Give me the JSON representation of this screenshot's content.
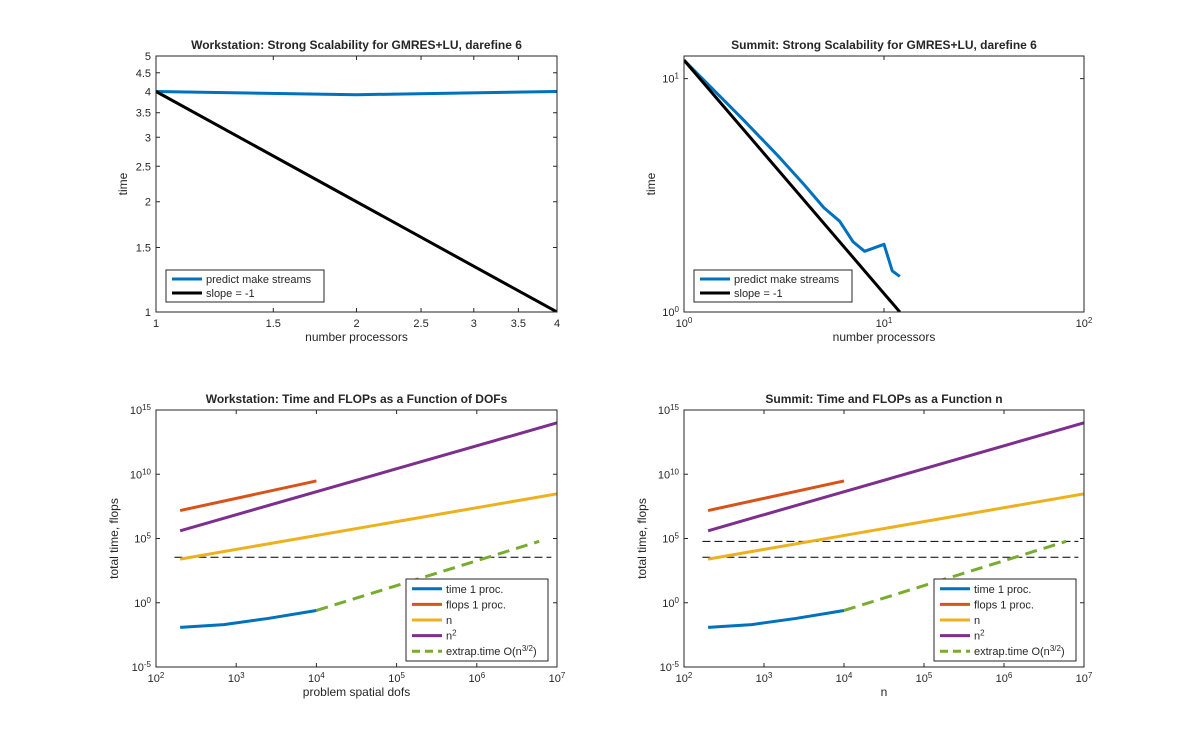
{
  "chart_data": [
    {
      "type": "line",
      "title": "Workstation: Strong Scalability for GMRES+LU, darefine 6",
      "xlabel": "number processors",
      "ylabel": "time",
      "xscale": "log",
      "yscale": "log",
      "xlim": [
        1,
        4
      ],
      "ylim": [
        1,
        5
      ],
      "xticks": [
        1,
        1.5,
        2,
        2.5,
        3,
        3.5,
        4
      ],
      "xtick_labels": [
        "1",
        "1.5",
        "2",
        "2.5",
        "3",
        "3.5",
        "4"
      ],
      "yticks": [
        1,
        1.5,
        2,
        2.5,
        3,
        3.5,
        4,
        4.5,
        5
      ],
      "ytick_labels": [
        "1",
        "1.5",
        "2",
        "2.5",
        "3",
        "3.5",
        "4",
        "4.5",
        "5"
      ],
      "legend_location": "bottom-left",
      "series": [
        {
          "name": "predict make streams",
          "color": "#0072BD",
          "dash": false,
          "x": [
            1,
            2,
            4
          ],
          "y": [
            4.0,
            3.92,
            4.0
          ]
        },
        {
          "name": "slope = -1",
          "color": "#000000",
          "dash": false,
          "x": [
            1,
            4
          ],
          "y": [
            4.0,
            1.0
          ]
        }
      ]
    },
    {
      "type": "line",
      "title": "Summit: Strong Scalability for GMRES+LU, darefine 6",
      "xlabel": "number processors",
      "ylabel": "time",
      "xscale": "log",
      "yscale": "log",
      "xlim": [
        1,
        100
      ],
      "ylim": [
        1,
        12.5
      ],
      "xticks": [
        1,
        10,
        100
      ],
      "xtick_labels": [
        "10^0",
        "10^1",
        "10^2"
      ],
      "yticks": [
        1,
        10
      ],
      "ytick_labels": [
        "10^0",
        "10^1"
      ],
      "legend_location": "bottom-left",
      "series": [
        {
          "name": "predict make streams",
          "color": "#0072BD",
          "dash": false,
          "x": [
            1,
            2,
            3,
            4,
            5,
            6,
            7,
            8,
            10,
            11,
            12
          ],
          "y": [
            12,
            6.6,
            4.6,
            3.5,
            2.8,
            2.45,
            2.0,
            1.82,
            1.95,
            1.5,
            1.42
          ]
        },
        {
          "name": "slope = -1",
          "color": "#000000",
          "dash": false,
          "x": [
            1,
            12
          ],
          "y": [
            12,
            1
          ]
        }
      ]
    },
    {
      "type": "line",
      "title": "Workstation: Time and FLOPs as a Function of DOFs",
      "xlabel": "problem spatial dofs",
      "ylabel": "total time, flops",
      "xscale": "log",
      "yscale": "log",
      "xlim": [
        100,
        10000000
      ],
      "ylim": [
        1e-05,
        1000000000000000.0
      ],
      "xticks": [
        100,
        1000,
        10000,
        100000,
        1000000,
        10000000
      ],
      "xtick_labels": [
        "10^2",
        "10^3",
        "10^4",
        "10^5",
        "10^6",
        "10^7"
      ],
      "yticks": [
        1e-05,
        1,
        100000,
        10000000000.0,
        1000000000000000.0
      ],
      "ytick_labels": [
        "10^-5",
        "10^0",
        "10^5",
        "10^10",
        "10^15"
      ],
      "legend_location": "bottom-right",
      "reference_lines": [
        {
          "y": 3500,
          "color": "#000000",
          "dash": true
        }
      ],
      "series": [
        {
          "name": "time 1 proc.",
          "color": "#0072BD",
          "dash": false,
          "x": [
            200,
            700,
            2500,
            10000
          ],
          "y": [
            0.012,
            0.02,
            0.06,
            0.25
          ]
        },
        {
          "name": "flops 1 proc.",
          "color": "#D95319",
          "dash": false,
          "x": [
            200,
            10000
          ],
          "y": [
            15000000,
            3000000000
          ]
        },
        {
          "name": "n",
          "color": "#EDB120",
          "dash": false,
          "x": [
            200,
            10000000
          ],
          "y": [
            2500,
            300000000
          ]
        },
        {
          "name": "n^2",
          "color": "#7E2F8E",
          "dash": false,
          "x": [
            200,
            10000000
          ],
          "y": [
            400000,
            100000000000000
          ]
        },
        {
          "name": "extrap.time O(n^{3/2})",
          "color": "#77AC30",
          "dash": true,
          "x": [
            10000,
            6000000
          ],
          "y": [
            0.25,
            60000
          ]
        }
      ]
    },
    {
      "type": "line",
      "title": "Summit: Time and FLOPs as a Function n",
      "xlabel": "n",
      "ylabel": "total time, flops",
      "xscale": "log",
      "yscale": "log",
      "xlim": [
        100,
        10000000
      ],
      "ylim": [
        1e-05,
        1000000000000000.0
      ],
      "xticks": [
        100,
        1000,
        10000,
        100000,
        1000000,
        10000000
      ],
      "xtick_labels": [
        "10^2",
        "10^3",
        "10^4",
        "10^5",
        "10^6",
        "10^7"
      ],
      "yticks": [
        1e-05,
        1,
        100000,
        10000000000.0,
        1000000000000000.0
      ],
      "ytick_labels": [
        "10^-5",
        "10^0",
        "10^5",
        "10^10",
        "10^15"
      ],
      "legend_location": "bottom-right",
      "reference_lines": [
        {
          "y": 3500,
          "color": "#000000",
          "dash": true
        },
        {
          "y": 60000,
          "color": "#000000",
          "dash": true
        }
      ],
      "series": [
        {
          "name": "time 1 proc.",
          "color": "#0072BD",
          "dash": false,
          "x": [
            200,
            700,
            2500,
            10000
          ],
          "y": [
            0.012,
            0.02,
            0.06,
            0.25
          ]
        },
        {
          "name": "flops 1 proc.",
          "color": "#D95319",
          "dash": false,
          "x": [
            200,
            10000
          ],
          "y": [
            15000000,
            3000000000
          ]
        },
        {
          "name": "n",
          "color": "#EDB120",
          "dash": false,
          "x": [
            200,
            10000000
          ],
          "y": [
            2500,
            300000000
          ]
        },
        {
          "name": "n^2",
          "color": "#7E2F8E",
          "dash": false,
          "x": [
            200,
            10000000
          ],
          "y": [
            400000,
            100000000000000
          ]
        },
        {
          "name": "extrap.time O(n^{3/2})",
          "color": "#77AC30",
          "dash": true,
          "x": [
            10000,
            6000000
          ],
          "y": [
            0.25,
            60000
          ]
        }
      ]
    }
  ]
}
